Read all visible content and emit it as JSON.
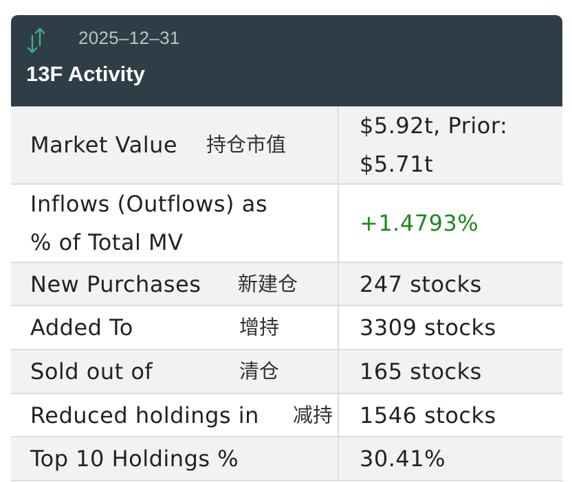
{
  "header": {
    "date": "2025–12–31",
    "title": "13F Activity",
    "icon": "up-down-arrows-icon",
    "background_color": "#2f3e46",
    "icon_color": "#3fae8f"
  },
  "rows": [
    {
      "label": "Market Value",
      "label_cn": "持仓市值",
      "value_line1": "$5.92t, Prior:",
      "value_line2": "$5.71t"
    },
    {
      "label_line1": "Inflows (Outflows) as",
      "label_line2": "% of Total MV",
      "value": "+1.4793%",
      "value_color": "#1a8a1a"
    },
    {
      "label": "New Purchases",
      "label_cn": "新建仓",
      "value": "247 stocks"
    },
    {
      "label": "Added To",
      "label_cn": "增持",
      "value": "3309 stocks"
    },
    {
      "label": "Sold out of",
      "label_cn": "清仓",
      "value": "165 stocks"
    },
    {
      "label": "Reduced holdings in",
      "label_cn": "减持",
      "value": "1546 stocks"
    },
    {
      "label": "Top 10 Holdings %",
      "value": "30.41%"
    }
  ]
}
